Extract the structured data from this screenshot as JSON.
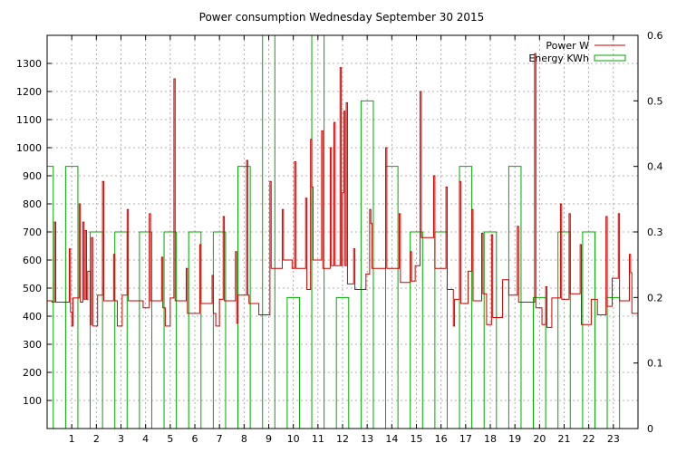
{
  "chart_data": {
    "type": "line",
    "title": "Power consumption Wednesday September 30 2015",
    "grid": true,
    "legend_position": "top-right",
    "x_ticks": [
      "1",
      "2",
      "3",
      "4",
      "5",
      "6",
      "7",
      "8",
      "9",
      "10",
      "11",
      "12",
      "13",
      "14",
      "15",
      "16",
      "17",
      "18",
      "19",
      "20",
      "21",
      "22",
      "23"
    ],
    "xlim": [
      0,
      24
    ],
    "y_left_ticks": [
      "100",
      "200",
      "300",
      "400",
      "500",
      "600",
      "700",
      "800",
      "900",
      "1000",
      "1100",
      "1200",
      "1300"
    ],
    "ylim_left": [
      0,
      1400
    ],
    "y_right_ticks": [
      "0",
      "0.1",
      "0.2",
      "0.3",
      "0.4",
      "0.5",
      "0.6"
    ],
    "ylim_right": [
      0,
      0.6
    ],
    "series": [
      {
        "name": "Power W",
        "color": "#cc0000",
        "axis": "left",
        "step": true,
        "points": [
          [
            0.0,
            455
          ],
          [
            0.2,
            450
          ],
          [
            0.3,
            735
          ],
          [
            0.35,
            450
          ],
          [
            0.7,
            450
          ],
          [
            0.9,
            640
          ],
          [
            0.95,
            415
          ],
          [
            1.0,
            365
          ],
          [
            1.05,
            465
          ],
          [
            1.3,
            800
          ],
          [
            1.35,
            450
          ],
          [
            1.45,
            735
          ],
          [
            1.5,
            460
          ],
          [
            1.55,
            705
          ],
          [
            1.6,
            460
          ],
          [
            1.65,
            560
          ],
          [
            1.75,
            370
          ],
          [
            1.8,
            680
          ],
          [
            1.85,
            365
          ],
          [
            2.05,
            475
          ],
          [
            2.25,
            880
          ],
          [
            2.3,
            455
          ],
          [
            2.7,
            620
          ],
          [
            2.75,
            455
          ],
          [
            2.85,
            365
          ],
          [
            3.05,
            475
          ],
          [
            3.25,
            780
          ],
          [
            3.3,
            455
          ],
          [
            3.45,
            455
          ],
          [
            3.9,
            430
          ],
          [
            4.15,
            765
          ],
          [
            4.2,
            455
          ],
          [
            4.65,
            610
          ],
          [
            4.7,
            430
          ],
          [
            4.8,
            365
          ],
          [
            5.0,
            465
          ],
          [
            5.15,
            1245
          ],
          [
            5.2,
            455
          ],
          [
            5.65,
            570
          ],
          [
            5.7,
            410
          ],
          [
            6.2,
            655
          ],
          [
            6.25,
            445
          ],
          [
            6.6,
            445
          ],
          [
            6.7,
            545
          ],
          [
            6.75,
            410
          ],
          [
            6.85,
            365
          ],
          [
            7.0,
            460
          ],
          [
            7.15,
            755
          ],
          [
            7.2,
            455
          ],
          [
            7.65,
            630
          ],
          [
            7.7,
            375
          ],
          [
            7.75,
            475
          ],
          [
            8.1,
            955
          ],
          [
            8.15,
            475
          ],
          [
            8.2,
            445
          ],
          [
            8.6,
            405
          ],
          [
            9.05,
            880
          ],
          [
            9.1,
            570
          ],
          [
            9.55,
            780
          ],
          [
            9.6,
            600
          ],
          [
            9.95,
            570
          ],
          [
            10.05,
            950
          ],
          [
            10.1,
            570
          ],
          [
            10.5,
            820
          ],
          [
            10.55,
            495
          ],
          [
            10.7,
            1030
          ],
          [
            10.75,
            860
          ],
          [
            10.8,
            600
          ],
          [
            11.15,
            1060
          ],
          [
            11.2,
            570
          ],
          [
            11.5,
            1000
          ],
          [
            11.55,
            580
          ],
          [
            11.65,
            1090
          ],
          [
            11.7,
            580
          ],
          [
            11.9,
            1285
          ],
          [
            11.95,
            580
          ],
          [
            12.0,
            840
          ],
          [
            12.05,
            1130
          ],
          [
            12.1,
            580
          ],
          [
            12.15,
            1160
          ],
          [
            12.2,
            515
          ],
          [
            12.45,
            640
          ],
          [
            12.5,
            495
          ],
          [
            12.95,
            550
          ],
          [
            13.1,
            780
          ],
          [
            13.15,
            730
          ],
          [
            13.2,
            570
          ],
          [
            13.6,
            570
          ],
          [
            13.75,
            1000
          ],
          [
            13.8,
            570
          ],
          [
            14.3,
            765
          ],
          [
            14.35,
            520
          ],
          [
            14.75,
            630
          ],
          [
            14.8,
            525
          ],
          [
            14.95,
            580
          ],
          [
            15.15,
            1200
          ],
          [
            15.2,
            680
          ],
          [
            15.7,
            900
          ],
          [
            15.75,
            570
          ],
          [
            16.2,
            860
          ],
          [
            16.25,
            495
          ],
          [
            16.5,
            365
          ],
          [
            16.55,
            460
          ],
          [
            16.75,
            880
          ],
          [
            16.8,
            445
          ],
          [
            17.1,
            560
          ],
          [
            17.25,
            780
          ],
          [
            17.3,
            455
          ],
          [
            17.65,
            695
          ],
          [
            17.7,
            480
          ],
          [
            17.85,
            370
          ],
          [
            18.05,
            690
          ],
          [
            18.1,
            395
          ],
          [
            18.5,
            530
          ],
          [
            18.75,
            475
          ],
          [
            19.1,
            720
          ],
          [
            19.15,
            450
          ],
          [
            19.8,
            1335
          ],
          [
            19.85,
            430
          ],
          [
            20.1,
            370
          ],
          [
            20.25,
            505
          ],
          [
            20.3,
            360
          ],
          [
            20.5,
            465
          ],
          [
            20.85,
            800
          ],
          [
            20.9,
            460
          ],
          [
            21.2,
            765
          ],
          [
            21.25,
            480
          ],
          [
            21.65,
            655
          ],
          [
            21.7,
            370
          ],
          [
            22.1,
            460
          ],
          [
            22.35,
            405
          ],
          [
            22.7,
            755
          ],
          [
            22.75,
            435
          ],
          [
            22.95,
            535
          ],
          [
            23.2,
            765
          ],
          [
            23.25,
            455
          ],
          [
            23.65,
            620
          ],
          [
            23.7,
            555
          ],
          [
            23.75,
            410
          ],
          [
            24.0,
            410
          ]
        ]
      },
      {
        "name": "Energy KWh",
        "color": "#00aa00",
        "axis": "right",
        "step": true,
        "points": [
          [
            0.0,
            0.4
          ],
          [
            0.25,
            0.0
          ],
          [
            0.75,
            0.4
          ],
          [
            1.25,
            0.0
          ],
          [
            1.75,
            0.3
          ],
          [
            2.25,
            0.0
          ],
          [
            2.75,
            0.3
          ],
          [
            3.25,
            0.0
          ],
          [
            3.75,
            0.3
          ],
          [
            4.25,
            0.0
          ],
          [
            4.75,
            0.3
          ],
          [
            5.25,
            0.0
          ],
          [
            5.75,
            0.3
          ],
          [
            6.25,
            0.0
          ],
          [
            6.75,
            0.3
          ],
          [
            7.25,
            0.0
          ],
          [
            7.75,
            0.4
          ],
          [
            8.25,
            0.0
          ],
          [
            8.75,
            0.6
          ],
          [
            9.25,
            0.0
          ],
          [
            9.75,
            0.2
          ],
          [
            10.25,
            0.0
          ],
          [
            10.75,
            0.6
          ],
          [
            11.25,
            0.0
          ],
          [
            11.75,
            0.2
          ],
          [
            12.25,
            0.0
          ],
          [
            12.75,
            0.5
          ],
          [
            13.25,
            0.0
          ],
          [
            13.75,
            0.4
          ],
          [
            14.25,
            0.0
          ],
          [
            14.75,
            0.3
          ],
          [
            15.25,
            0.0
          ],
          [
            15.75,
            0.3
          ],
          [
            16.25,
            0.0
          ],
          [
            16.75,
            0.4
          ],
          [
            17.25,
            0.0
          ],
          [
            17.75,
            0.3
          ],
          [
            18.25,
            0.0
          ],
          [
            18.75,
            0.4
          ],
          [
            19.25,
            0.0
          ],
          [
            19.75,
            0.2
          ],
          [
            20.25,
            0.0
          ],
          [
            20.75,
            0.3
          ],
          [
            21.25,
            0.0
          ],
          [
            21.75,
            0.3
          ],
          [
            22.25,
            0.0
          ],
          [
            22.75,
            0.2
          ],
          [
            23.25,
            0.0
          ]
        ]
      }
    ]
  }
}
